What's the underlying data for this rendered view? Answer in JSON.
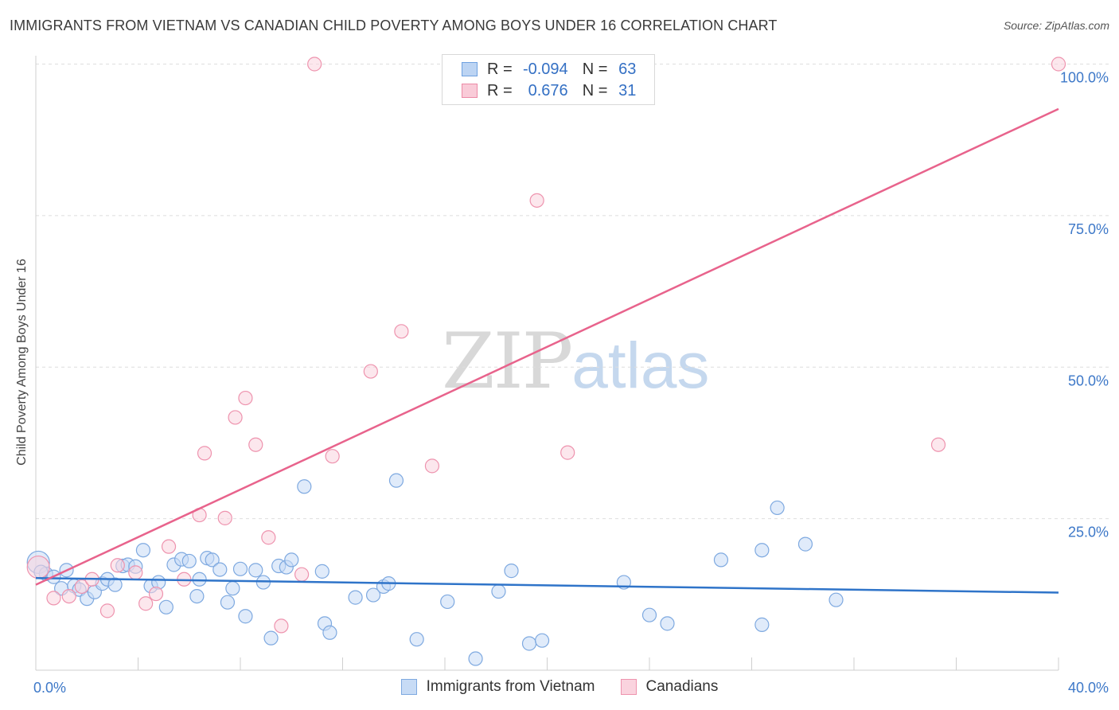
{
  "title": "IMMIGRANTS FROM VIETNAM VS CANADIAN CHILD POVERTY AMONG BOYS UNDER 16 CORRELATION CHART",
  "source": "Source: ZipAtlas.com",
  "watermark": {
    "zip": "ZIP",
    "atlas": "atlas"
  },
  "legend": {
    "rows": [
      {
        "r_label": "R =",
        "r_value": "-0.094",
        "n_label": "N =",
        "n_value": "63",
        "color": "#6fa1e0",
        "fill": "#bcd4f3"
      },
      {
        "r_label": "R =",
        "r_value": "0.676",
        "n_label": "N =",
        "n_value": "31",
        "color": "#ec8aa6",
        "fill": "#f9cbd8"
      }
    ]
  },
  "colors": {
    "blue_stroke": "#7ea9e0",
    "blue_fill": "#c7dbf5",
    "pink_stroke": "#ee93ae",
    "pink_fill": "#fad3de",
    "blue_line": "#2f74c9",
    "pink_line": "#e8638c",
    "tick_text": "#3d78c8"
  },
  "chart_data": {
    "type": "scatter",
    "title": "IMMIGRANTS FROM VIETNAM VS CANADIAN CHILD POVERTY AMONG BOYS UNDER 16 CORRELATION CHART",
    "xlabel": "",
    "ylabel": "Child Poverty Among Boys Under 16",
    "xlim": [
      0,
      40
    ],
    "ylim": [
      0,
      103
    ],
    "x_tick_labels": [
      {
        "value": 0,
        "label": "0.0%"
      },
      {
        "value": 40,
        "label": "40.0%"
      }
    ],
    "y_tick_labels": [
      {
        "value": 25,
        "label": "25.0%"
      },
      {
        "value": 50,
        "label": "50.0%"
      },
      {
        "value": 75,
        "label": "75.0%"
      },
      {
        "value": 100,
        "label": "100.0%"
      }
    ],
    "grid": true,
    "legend_position": "bottom-center",
    "series": [
      {
        "name": "Immigrants from Vietnam",
        "color": "#7ea9e0",
        "trend": {
          "x": [
            0,
            40
          ],
          "y": [
            15.2,
            12.8
          ]
        },
        "points": [
          [
            0.1,
            17.8
          ],
          [
            0.4,
            15.9
          ],
          [
            0.7,
            15.4
          ],
          [
            1.0,
            13.5
          ],
          [
            1.2,
            16.5
          ],
          [
            1.5,
            13.9
          ],
          [
            1.7,
            13.3
          ],
          [
            2.0,
            11.8
          ],
          [
            2.3,
            12.9
          ],
          [
            2.6,
            14.3
          ],
          [
            2.8,
            15.0
          ],
          [
            3.1,
            14.1
          ],
          [
            3.4,
            17.2
          ],
          [
            3.6,
            17.4
          ],
          [
            3.9,
            17.1
          ],
          [
            4.2,
            19.8
          ],
          [
            4.5,
            13.9
          ],
          [
            4.8,
            14.5
          ],
          [
            5.1,
            10.4
          ],
          [
            5.4,
            17.4
          ],
          [
            5.7,
            18.3
          ],
          [
            6.0,
            18.0
          ],
          [
            6.3,
            12.2
          ],
          [
            6.4,
            15.0
          ],
          [
            6.7,
            18.5
          ],
          [
            6.9,
            18.2
          ],
          [
            7.2,
            16.6
          ],
          [
            7.5,
            11.2
          ],
          [
            7.7,
            13.5
          ],
          [
            8.0,
            16.7
          ],
          [
            8.2,
            8.9
          ],
          [
            8.6,
            16.5
          ],
          [
            8.9,
            14.5
          ],
          [
            9.2,
            5.3
          ],
          [
            9.5,
            17.2
          ],
          [
            9.8,
            17.0
          ],
          [
            10.0,
            18.2
          ],
          [
            10.5,
            30.3
          ],
          [
            11.2,
            16.3
          ],
          [
            11.3,
            7.7
          ],
          [
            11.5,
            6.2
          ],
          [
            12.5,
            12.0
          ],
          [
            13.2,
            12.4
          ],
          [
            13.6,
            13.8
          ],
          [
            13.8,
            14.3
          ],
          [
            14.1,
            31.3
          ],
          [
            14.9,
            5.1
          ],
          [
            16.1,
            11.3
          ],
          [
            17.2,
            1.9
          ],
          [
            18.1,
            13.0
          ],
          [
            18.6,
            16.4
          ],
          [
            19.3,
            4.4
          ],
          [
            19.8,
            4.9
          ],
          [
            23.0,
            14.5
          ],
          [
            24.0,
            9.1
          ],
          [
            24.7,
            7.7
          ],
          [
            26.8,
            18.2
          ],
          [
            28.4,
            19.8
          ],
          [
            28.4,
            7.5
          ],
          [
            29.0,
            26.8
          ],
          [
            30.1,
            20.8
          ],
          [
            31.3,
            11.6
          ],
          [
            0.2,
            16.2
          ]
        ]
      },
      {
        "name": "Canadians",
        "color": "#ee93ae",
        "trend": {
          "x": [
            0,
            40
          ],
          "y": [
            14.1,
            92.6
          ]
        },
        "points": [
          [
            0.1,
            17.0
          ],
          [
            0.7,
            11.9
          ],
          [
            1.3,
            12.2
          ],
          [
            1.8,
            13.8
          ],
          [
            2.2,
            15.0
          ],
          [
            2.8,
            9.8
          ],
          [
            3.2,
            17.3
          ],
          [
            3.9,
            16.1
          ],
          [
            4.3,
            11.0
          ],
          [
            4.7,
            12.6
          ],
          [
            5.2,
            20.4
          ],
          [
            5.8,
            15.0
          ],
          [
            6.4,
            25.6
          ],
          [
            6.6,
            35.8
          ],
          [
            7.4,
            25.1
          ],
          [
            7.8,
            41.7
          ],
          [
            8.2,
            44.9
          ],
          [
            8.6,
            37.2
          ],
          [
            9.1,
            21.9
          ],
          [
            9.6,
            7.3
          ],
          [
            10.4,
            15.8
          ],
          [
            10.9,
            100.0
          ],
          [
            11.6,
            35.3
          ],
          [
            13.1,
            49.3
          ],
          [
            14.3,
            55.9
          ],
          [
            15.5,
            33.7
          ],
          [
            19.6,
            77.5
          ],
          [
            20.8,
            35.9
          ],
          [
            21.0,
            100.0
          ],
          [
            35.3,
            37.2
          ],
          [
            40.0,
            100.0
          ]
        ]
      }
    ]
  },
  "bottom_legend": [
    {
      "label": "Immigrants from Vietnam",
      "stroke": "#7ea9e0",
      "fill": "#c7dbf5"
    },
    {
      "label": "Canadians",
      "stroke": "#ee93ae",
      "fill": "#fad3de"
    }
  ]
}
